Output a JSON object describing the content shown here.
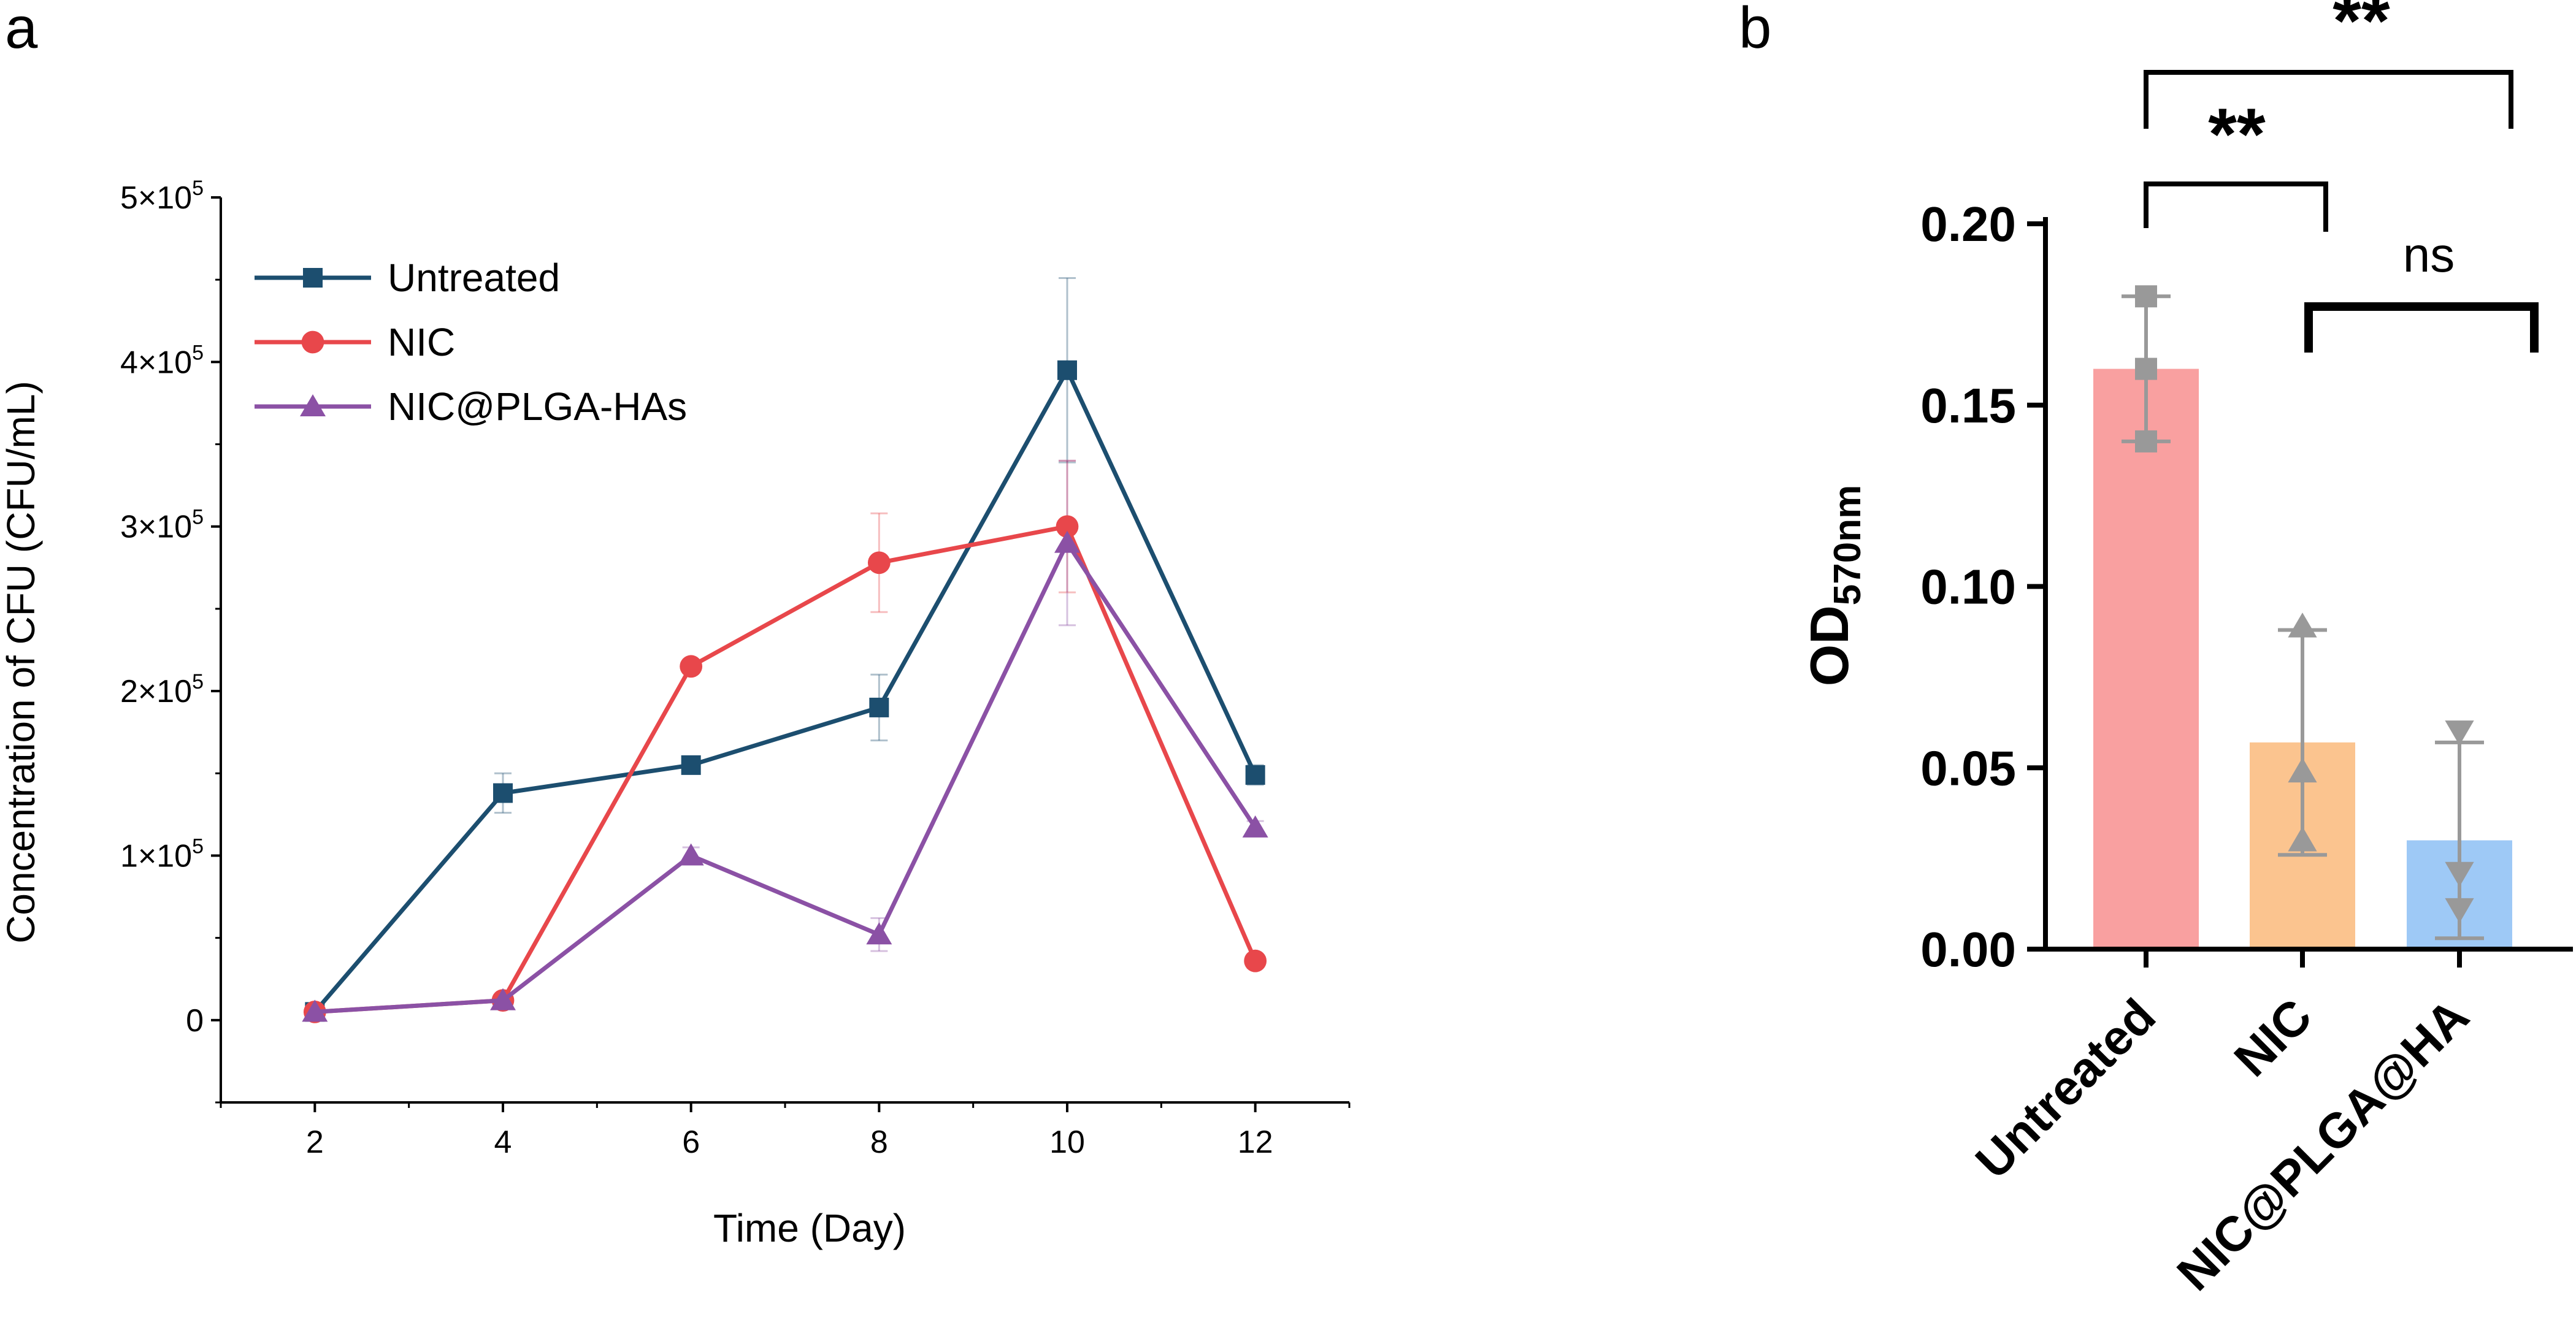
{
  "chart_data": [
    {
      "panel_label": "a",
      "type": "line",
      "xlabel": "Time (Day)",
      "ylabel": "Concentration of CFU (CFU/mL)",
      "x": [
        2,
        4,
        6,
        8,
        10,
        12
      ],
      "xticks": [
        2,
        4,
        6,
        8,
        10,
        12
      ],
      "xlim": [
        1,
        13
      ],
      "ylim": [
        -50000,
        500000
      ],
      "yticks": [
        {
          "value": 0,
          "base": "0",
          "exp": ""
        },
        {
          "value": 100000,
          "base": "1×10",
          "exp": "5"
        },
        {
          "value": 200000,
          "base": "2×10",
          "exp": "5"
        },
        {
          "value": 300000,
          "base": "3×10",
          "exp": "5"
        },
        {
          "value": 400000,
          "base": "4×10",
          "exp": "5"
        },
        {
          "value": 500000,
          "base": "5×10",
          "exp": "5"
        }
      ],
      "legend_position": "top-left",
      "series": [
        {
          "name": "Untreated",
          "marker": "square",
          "color": "#1c4e6f",
          "values": [
            5000,
            138000,
            155000,
            190000,
            395000,
            149000
          ],
          "errors": [
            3000,
            12000,
            5000,
            20000,
            56000,
            6000
          ]
        },
        {
          "name": "NIC",
          "marker": "circle",
          "color": "#e8474b",
          "values": [
            5000,
            12000,
            215000,
            278000,
            300000,
            36000
          ],
          "errors": [
            2000,
            3000,
            4000,
            30000,
            40000,
            3000
          ]
        },
        {
          "name": "NIC@PLGA-HAs",
          "marker": "triangle",
          "color": "#8b51a5",
          "values": [
            5000,
            12000,
            100000,
            52000,
            290000,
            117000
          ],
          "errors": [
            2000,
            3000,
            5000,
            10000,
            50000,
            4000
          ]
        }
      ]
    },
    {
      "panel_label": "b",
      "type": "bar",
      "ylabel_main": "OD",
      "ylabel_sub": "570nm",
      "ylim": [
        0,
        0.2
      ],
      "yticks": [
        0,
        0.05,
        0.1,
        0.15,
        0.2
      ],
      "ytick_labels": [
        "0.00",
        "0.05",
        "0.10",
        "0.15",
        "0.20"
      ],
      "categories": [
        "Untreated",
        "NIC",
        "NIC@PLGA@HA"
      ],
      "values": [
        0.16,
        0.057,
        0.03
      ],
      "errors": [
        0.02,
        0.031,
        0.027
      ],
      "colors": [
        "#f9a0a0",
        "#fbc48f",
        "#9ec9f6"
      ],
      "points": [
        {
          "marker": "square",
          "values": [
            0.18,
            0.16,
            0.14
          ]
        },
        {
          "marker": "triangle-up",
          "values": [
            0.089,
            0.049,
            0.03
          ]
        },
        {
          "marker": "triangle-down",
          "values": [
            0.06,
            0.021,
            0.011
          ]
        }
      ],
      "point_color": "#999999",
      "significance": [
        {
          "from": 0,
          "to": 2,
          "label": "**"
        },
        {
          "from": 0,
          "to": 1,
          "label": "**"
        },
        {
          "from": 1,
          "to": 2,
          "label": "ns"
        }
      ]
    }
  ]
}
